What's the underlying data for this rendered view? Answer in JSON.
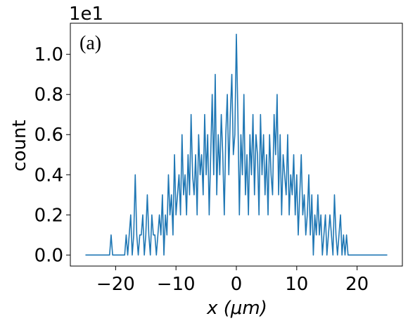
{
  "chart_data": {
    "type": "line",
    "offset_text": "1e1",
    "annotation": "(a)",
    "xlabel": "x (μm)",
    "ylabel": "count",
    "color": "#1f77b4",
    "xlim": [
      -27.5,
      27.5
    ],
    "ylim": [
      -0.055,
      1.155
    ],
    "xticks": [
      {
        "value": -20,
        "label": "−20"
      },
      {
        "value": -10,
        "label": "−10"
      },
      0,
      10,
      20
    ],
    "yticks": [
      {
        "value": 0,
        "label": "0.0"
      },
      0.2,
      0.4,
      0.6,
      0.8,
      {
        "value": 1,
        "label": "1.0"
      }
    ],
    "x": [
      -25,
      -24.75,
      -24.5,
      -24.25,
      -24,
      -23.75,
      -23.5,
      -23.25,
      -23,
      -22.75,
      -22.5,
      -22.25,
      -22,
      -21.75,
      -21.5,
      -21.25,
      -21,
      -20.75,
      -20.5,
      -20.25,
      -20,
      -19.75,
      -19.5,
      -19.25,
      -19,
      -18.75,
      -18.5,
      -18.25,
      -18,
      -17.75,
      -17.5,
      -17.25,
      -17,
      -16.75,
      -16.5,
      -16.25,
      -16,
      -15.75,
      -15.5,
      -15.25,
      -15,
      -14.75,
      -14.5,
      -14.25,
      -14,
      -13.75,
      -13.5,
      -13.25,
      -13,
      -12.75,
      -12.5,
      -12.25,
      -12,
      -11.75,
      -11.5,
      -11.25,
      -11,
      -10.75,
      -10.5,
      -10.25,
      -10,
      -9.75,
      -9.5,
      -9.25,
      -9,
      -8.75,
      -8.5,
      -8.25,
      -8,
      -7.75,
      -7.5,
      -7.25,
      -7,
      -6.75,
      -6.5,
      -6.25,
      -6,
      -5.75,
      -5.5,
      -5.25,
      -5,
      -4.75,
      -4.5,
      -4.25,
      -4,
      -3.75,
      -3.5,
      -3.25,
      -3,
      -2.75,
      -2.5,
      -2.25,
      -2,
      -1.75,
      -1.5,
      -1.25,
      -1,
      -0.75,
      -0.5,
      -0.25,
      0,
      0.25,
      0.5,
      0.75,
      1,
      1.25,
      1.5,
      1.75,
      2,
      2.25,
      2.5,
      2.75,
      3,
      3.25,
      3.5,
      3.75,
      4,
      4.25,
      4.5,
      4.75,
      5,
      5.25,
      5.5,
      5.75,
      6,
      6.25,
      6.5,
      6.75,
      7,
      7.25,
      7.5,
      7.75,
      8,
      8.25,
      8.5,
      8.75,
      9,
      9.25,
      9.5,
      9.75,
      10,
      10.25,
      10.5,
      10.75,
      11,
      11.25,
      11.5,
      11.75,
      12,
      12.25,
      12.5,
      12.75,
      13,
      13.25,
      13.5,
      13.75,
      14,
      14.25,
      14.5,
      14.75,
      15,
      15.25,
      15.5,
      15.75,
      16,
      16.25,
      16.5,
      16.75,
      17,
      17.25,
      17.5,
      17.75,
      18,
      18.25,
      18.5,
      18.75,
      19,
      19.25,
      19.5,
      19.75,
      20,
      20.25,
      20.5,
      20.75,
      21,
      21.25,
      21.5,
      21.75,
      22,
      22.25,
      22.5,
      22.75,
      23,
      23.25,
      23.5,
      23.75,
      24,
      24.25,
      24.5,
      24.75,
      25
    ],
    "values": [
      0,
      0,
      0,
      0,
      0,
      0,
      0,
      0,
      0,
      0,
      0,
      0,
      0,
      0,
      0,
      0,
      0,
      0.1,
      0,
      0,
      0,
      0,
      0,
      0,
      0,
      0,
      0,
      0.1,
      0,
      0.1,
      0.2,
      0,
      0.1,
      0.4,
      0.1,
      0,
      0.1,
      0.1,
      0.2,
      0,
      0.1,
      0.3,
      0.1,
      0,
      0.2,
      0.1,
      0.1,
      0,
      0.1,
      0.2,
      0.1,
      0.3,
      0,
      0.2,
      0.1,
      0.4,
      0.2,
      0.3,
      0.1,
      0.5,
      0.2,
      0.3,
      0.4,
      0.2,
      0.6,
      0.3,
      0.4,
      0.2,
      0.5,
      0.3,
      0.7,
      0.4,
      0.3,
      0.5,
      0.2,
      0.6,
      0.4,
      0.5,
      0.3,
      0.7,
      0.4,
      0.6,
      0.2,
      0.5,
      0.8,
      0.4,
      0.9,
      0.3,
      0.6,
      0.4,
      0.7,
      0.5,
      0.2,
      0.6,
      0.8,
      0.4,
      0.7,
      0.9,
      0.5,
      0.6,
      1.1,
      0.7,
      0.2,
      0.6,
      0.4,
      0.8,
      0.3,
      0.5,
      0.2,
      0.6,
      0.4,
      0.7,
      0.3,
      0.6,
      0.5,
      0.2,
      0.7,
      0.4,
      0.6,
      0.3,
      0.5,
      0.2,
      0.6,
      0.4,
      0.3,
      0.7,
      0.5,
      0.8,
      0.3,
      0.6,
      0.2,
      0.5,
      0.4,
      0.3,
      0.6,
      0.2,
      0.4,
      0.3,
      0.5,
      0.2,
      0.4,
      0.1,
      0.3,
      0.5,
      0.2,
      0.3,
      0.1,
      0.2,
      0.4,
      0.1,
      0.3,
      0,
      0.2,
      0.1,
      0.3,
      0.1,
      0.2,
      0,
      0.1,
      0.2,
      0,
      0.1,
      0.2,
      0.1,
      0,
      0.3,
      0.1,
      0,
      0.1,
      0.2,
      0,
      0.1,
      0,
      0.1,
      0,
      0,
      0,
      0,
      0,
      0,
      0,
      0,
      0,
      0,
      0,
      0,
      0,
      0,
      0,
      0,
      0,
      0,
      0,
      0,
      0,
      0,
      0,
      0,
      0,
      0,
      0
    ]
  }
}
